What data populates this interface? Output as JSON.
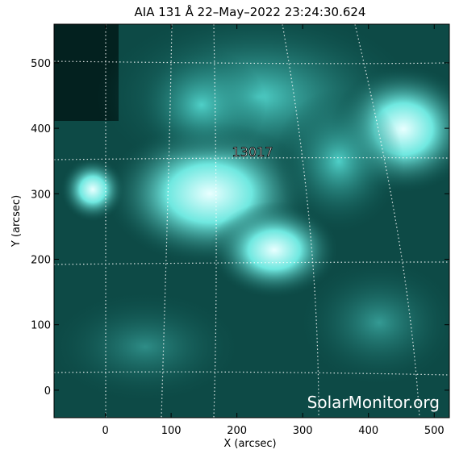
{
  "chart_data": {
    "type": "image",
    "title": "AIA 131 Å 22–May–2022 23:24:30.624",
    "xlabel": "X (arcsec)",
    "ylabel": "Y (arcsec)",
    "xlim": [
      -78,
      523
    ],
    "ylim": [
      -42,
      559
    ],
    "xticks": [
      0,
      100,
      200,
      300,
      400,
      500
    ],
    "yticks": [
      0,
      100,
      200,
      300,
      400,
      500
    ],
    "annotations": [
      "13017"
    ],
    "watermark": "SolarMonitor.org"
  }
}
